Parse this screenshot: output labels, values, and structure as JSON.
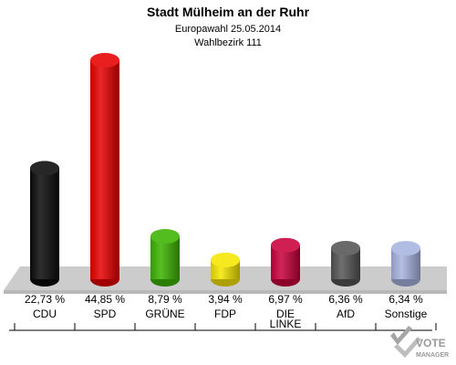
{
  "chart_data": {
    "type": "bar",
    "title": "Stadt Mülheim an der Ruhr",
    "subtitle": "Europawahl 25.05.2014",
    "subtitle2": "Wahlbezirk 111",
    "categories": [
      "CDU",
      "SPD",
      "GRÜNE",
      "FDP",
      "DIE LINKE",
      "AfD",
      "Sonstige"
    ],
    "category_lines": [
      [
        "CDU"
      ],
      [
        "SPD"
      ],
      [
        "GRÜNE"
      ],
      [
        "FDP"
      ],
      [
        "DIE",
        "LINKE"
      ],
      [
        "AfD"
      ],
      [
        "Sonstige"
      ]
    ],
    "values": [
      22.73,
      44.85,
      8.79,
      3.94,
      6.97,
      6.36,
      6.34
    ],
    "value_labels": [
      "22,73 %",
      "44,85 %",
      "8,79 %",
      "3,94 %",
      "6,97 %",
      "6,36 %",
      "6,34 %"
    ],
    "colors": [
      "#0a0a0a",
      "#e60000",
      "#3cb400",
      "#f5e600",
      "#c8003c",
      "#555555",
      "#a8b4e0"
    ],
    "ylim": [
      0,
      44.85
    ],
    "grid": false,
    "legend": "none"
  },
  "brand": {
    "line1": "VOTE",
    "line2": "MANAGER"
  }
}
